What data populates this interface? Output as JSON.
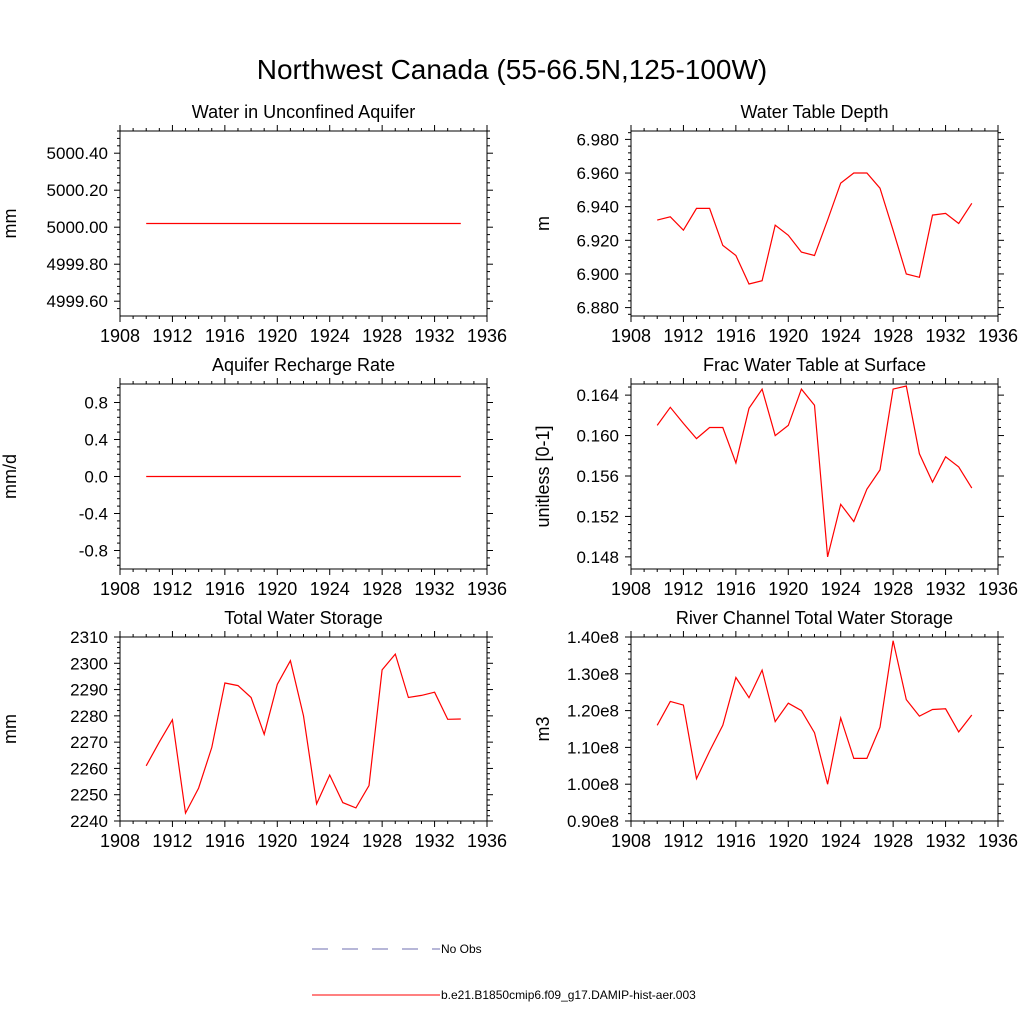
{
  "title": "Northwest Canada (55-66.5N,125-100W)",
  "legend": {
    "obs_label": "No Obs",
    "obs_color": "#6f6fb0",
    "model_label": "b.e21.B1850cmip6.f09_g17.DAMIP-hist-aer.003",
    "model_color": "#ff0000"
  },
  "chart_data": [
    {
      "type": "line",
      "title": "Water in Unconfined Aquifer",
      "ylabel": "mm",
      "xlim": [
        1908,
        1936
      ],
      "ylim": [
        4999.52,
        5000.52
      ],
      "xticks": [
        1908,
        1912,
        1916,
        1920,
        1924,
        1928,
        1932,
        1936
      ],
      "yticks": [
        4999.6,
        4999.8,
        5000.0,
        5000.2,
        5000.4
      ],
      "ytick_labels": [
        "4999.60",
        "4999.80",
        "5000.00",
        "5000.20",
        "5000.40"
      ],
      "series": [
        {
          "x": [
            1910,
            1911,
            1912,
            1913,
            1914,
            1915,
            1916,
            1917,
            1918,
            1919,
            1920,
            1921,
            1922,
            1923,
            1924,
            1925,
            1926,
            1927,
            1928,
            1929,
            1930,
            1931,
            1932,
            1933,
            1934
          ],
          "values": [
            5000.02,
            5000.02,
            5000.02,
            5000.02,
            5000.02,
            5000.02,
            5000.02,
            5000.02,
            5000.02,
            5000.02,
            5000.02,
            5000.02,
            5000.02,
            5000.02,
            5000.02,
            5000.02,
            5000.02,
            5000.02,
            5000.02,
            5000.02,
            5000.02,
            5000.02,
            5000.02,
            5000.02,
            5000.02
          ]
        }
      ]
    },
    {
      "type": "line",
      "title": "Water Table Depth",
      "ylabel": "m",
      "xlim": [
        1908,
        1936
      ],
      "ylim": [
        6.875,
        6.985
      ],
      "xticks": [
        1908,
        1912,
        1916,
        1920,
        1924,
        1928,
        1932,
        1936
      ],
      "yticks": [
        6.88,
        6.9,
        6.92,
        6.94,
        6.96,
        6.98
      ],
      "ytick_labels": [
        "6.880",
        "6.900",
        "6.920",
        "6.940",
        "6.960",
        "6.980"
      ],
      "series": [
        {
          "x": [
            1910,
            1911,
            1912,
            1913,
            1914,
            1915,
            1916,
            1917,
            1918,
            1919,
            1920,
            1921,
            1922,
            1923,
            1924,
            1925,
            1926,
            1927,
            1928,
            1929,
            1930,
            1931,
            1932,
            1933,
            1934
          ],
          "values": [
            6.932,
            6.934,
            6.926,
            6.939,
            6.939,
            6.917,
            6.911,
            6.894,
            6.896,
            6.929,
            6.923,
            6.913,
            6.911,
            6.932,
            6.954,
            6.96,
            6.96,
            6.951,
            6.926,
            6.9,
            6.898,
            6.935,
            6.936,
            6.93,
            6.942
          ]
        }
      ]
    },
    {
      "type": "line",
      "title": "Aquifer Recharge Rate",
      "ylabel": "mm/d",
      "xlim": [
        1908,
        1936
      ],
      "ylim": [
        -1.0,
        1.0
      ],
      "xticks": [
        1908,
        1912,
        1916,
        1920,
        1924,
        1928,
        1932,
        1936
      ],
      "yticks": [
        -0.8,
        -0.4,
        0.0,
        0.4,
        0.8
      ],
      "ytick_labels": [
        "-0.8",
        "-0.4",
        "0.0",
        "0.4",
        "0.8"
      ],
      "series": [
        {
          "x": [
            1910,
            1911,
            1912,
            1913,
            1914,
            1915,
            1916,
            1917,
            1918,
            1919,
            1920,
            1921,
            1922,
            1923,
            1924,
            1925,
            1926,
            1927,
            1928,
            1929,
            1930,
            1931,
            1932,
            1933,
            1934
          ],
          "values": [
            0,
            0,
            0,
            0,
            0,
            0,
            0,
            0,
            0,
            0,
            0,
            0,
            0,
            0,
            0,
            0,
            0,
            0,
            0,
            0,
            0,
            0,
            0,
            0,
            0
          ]
        }
      ]
    },
    {
      "type": "line",
      "title": "Frac Water Table at Surface",
      "ylabel": "unitless [0-1]",
      "xlim": [
        1908,
        1936
      ],
      "ylim": [
        0.1468,
        0.1651
      ],
      "xticks": [
        1908,
        1912,
        1916,
        1920,
        1924,
        1928,
        1932,
        1936
      ],
      "yticks": [
        0.148,
        0.152,
        0.156,
        0.16,
        0.164
      ],
      "ytick_labels": [
        "0.148",
        "0.152",
        "0.156",
        "0.160",
        "0.164"
      ],
      "series": [
        {
          "x": [
            1910,
            1911,
            1912,
            1913,
            1914,
            1915,
            1916,
            1917,
            1918,
            1919,
            1920,
            1921,
            1922,
            1923,
            1924,
            1925,
            1926,
            1927,
            1928,
            1929,
            1930,
            1931,
            1932,
            1933,
            1934
          ],
          "values": [
            0.161,
            0.1628,
            0.1612,
            0.1597,
            0.1608,
            0.1608,
            0.1573,
            0.1627,
            0.1646,
            0.16,
            0.161,
            0.1646,
            0.163,
            0.148,
            0.1532,
            0.1515,
            0.1547,
            0.1566,
            0.1646,
            0.1649,
            0.1582,
            0.1554,
            0.1579,
            0.1569,
            0.1548
          ]
        }
      ]
    },
    {
      "type": "line",
      "title": "Total Water Storage",
      "ylabel": "mm",
      "xlim": [
        1908,
        1936
      ],
      "ylim": [
        2240,
        2310
      ],
      "xticks": [
        1908,
        1912,
        1916,
        1920,
        1924,
        1928,
        1932,
        1936
      ],
      "yticks": [
        2240,
        2250,
        2260,
        2270,
        2280,
        2290,
        2300,
        2310
      ],
      "ytick_labels": [
        "2240",
        "2250",
        "2260",
        "2270",
        "2280",
        "2290",
        "2300",
        "2310"
      ],
      "series": [
        {
          "x": [
            1910,
            1911,
            1912,
            1913,
            1914,
            1915,
            1916,
            1917,
            1918,
            1919,
            1920,
            1921,
            1922,
            1923,
            1924,
            1925,
            1926,
            1927,
            1928,
            1929,
            1930,
            1931,
            1932,
            1933,
            1934
          ],
          "values": [
            2261,
            2270,
            2278.5,
            2243,
            2252.5,
            2268,
            2292.5,
            2291.5,
            2287,
            2273,
            2292,
            2301,
            2280,
            2246.5,
            2257.5,
            2247,
            2245,
            2253.5,
            2297.5,
            2303.5,
            2287,
            2287.8,
            2289,
            2278.7,
            2278.8
          ]
        }
      ]
    },
    {
      "type": "line",
      "title": "River Channel Total Water Storage",
      "ylabel": "m3",
      "xlim": [
        1908,
        1936
      ],
      "ylim": [
        90000000,
        140000000
      ],
      "xticks": [
        1908,
        1912,
        1916,
        1920,
        1924,
        1928,
        1932,
        1936
      ],
      "yticks": [
        90000000,
        100000000,
        110000000,
        120000000,
        130000000,
        140000000
      ],
      "ytick_labels": [
        "0.90e8",
        "1.00e8",
        "1.10e8",
        "1.20e8",
        "1.30e8",
        "1.40e8"
      ],
      "series": [
        {
          "x": [
            1910,
            1911,
            1912,
            1913,
            1914,
            1915,
            1916,
            1917,
            1918,
            1919,
            1920,
            1921,
            1922,
            1923,
            1924,
            1925,
            1926,
            1927,
            1928,
            1929,
            1930,
            1931,
            1932,
            1933,
            1934
          ],
          "values": [
            116000000,
            122500000,
            121500000,
            101500000,
            109000000,
            116000000,
            129000000,
            123500000,
            131000000,
            117000000,
            122000000,
            120000000,
            114000000,
            100000000,
            118000000,
            107000000,
            107000000,
            115500000,
            139000000,
            123000000,
            118500000,
            120300000,
            120500000,
            114200000,
            118800000
          ]
        }
      ]
    }
  ]
}
